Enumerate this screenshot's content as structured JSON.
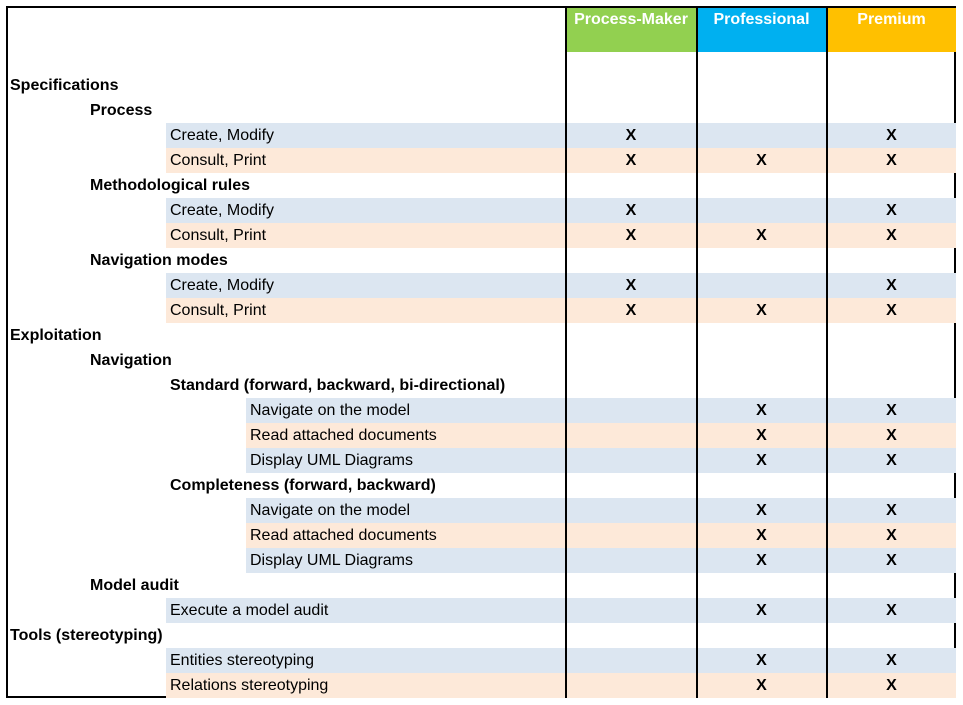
{
  "columns": [
    {
      "label": "Process-Maker",
      "color": "#92d050"
    },
    {
      "label": "Professional",
      "color": "#00b0f0"
    },
    {
      "label": "Premium",
      "color": "#ffc000"
    }
  ],
  "band_colors": {
    "blue": "#dce6f1",
    "peach": "#fde9d9"
  },
  "rows": [
    {
      "label": "Specifications",
      "level": 0,
      "bold": true,
      "band": "",
      "marks": [
        "",
        "",
        ""
      ]
    },
    {
      "label": "Process",
      "level": 1,
      "bold": true,
      "band": "",
      "marks": [
        "",
        "",
        ""
      ]
    },
    {
      "label": "Create, Modify",
      "level": 2,
      "bold": false,
      "band": "blue",
      "marks": [
        "X",
        "",
        "X"
      ]
    },
    {
      "label": "Consult, Print",
      "level": 2,
      "bold": false,
      "band": "peach",
      "marks": [
        "X",
        "X",
        "X"
      ]
    },
    {
      "label": "Methodological rules",
      "level": 1,
      "bold": true,
      "band": "",
      "marks": [
        "",
        "",
        ""
      ]
    },
    {
      "label": "Create, Modify",
      "level": 2,
      "bold": false,
      "band": "blue",
      "marks": [
        "X",
        "",
        "X"
      ]
    },
    {
      "label": "Consult, Print",
      "level": 2,
      "bold": false,
      "band": "peach",
      "marks": [
        "X",
        "X",
        "X"
      ]
    },
    {
      "label": "Navigation modes",
      "level": 1,
      "bold": true,
      "band": "",
      "marks": [
        "",
        "",
        ""
      ]
    },
    {
      "label": "Create, Modify",
      "level": 2,
      "bold": false,
      "band": "blue",
      "marks": [
        "X",
        "",
        "X"
      ]
    },
    {
      "label": "Consult, Print",
      "level": 2,
      "bold": false,
      "band": "peach",
      "marks": [
        "X",
        "X",
        "X"
      ]
    },
    {
      "label": "Exploitation",
      "level": 0,
      "bold": true,
      "band": "",
      "marks": [
        "",
        "",
        ""
      ]
    },
    {
      "label": "Navigation",
      "level": 1,
      "bold": true,
      "band": "",
      "marks": [
        "",
        "",
        ""
      ]
    },
    {
      "label": "Standard (forward, backward, bi-directional)",
      "level": 2,
      "bold": true,
      "band": "",
      "marks": [
        "",
        "",
        ""
      ]
    },
    {
      "label": "Navigate on the model",
      "level": 3,
      "bold": false,
      "band": "blue",
      "marks": [
        "",
        "X",
        "X"
      ]
    },
    {
      "label": "Read attached documents",
      "level": 3,
      "bold": false,
      "band": "peach",
      "marks": [
        "",
        "X",
        "X"
      ]
    },
    {
      "label": "Display UML Diagrams",
      "level": 3,
      "bold": false,
      "band": "blue",
      "marks": [
        "",
        "X",
        "X"
      ]
    },
    {
      "label": "Completeness (forward, backward)",
      "level": 2,
      "bold": true,
      "band": "",
      "marks": [
        "",
        "",
        ""
      ]
    },
    {
      "label": "Navigate on the model",
      "level": 3,
      "bold": false,
      "band": "blue",
      "marks": [
        "",
        "X",
        "X"
      ]
    },
    {
      "label": "Read attached documents",
      "level": 3,
      "bold": false,
      "band": "peach",
      "marks": [
        "",
        "X",
        "X"
      ]
    },
    {
      "label": "Display UML Diagrams",
      "level": 3,
      "bold": false,
      "band": "blue",
      "marks": [
        "",
        "X",
        "X"
      ]
    },
    {
      "label": "Model audit",
      "level": 1,
      "bold": true,
      "band": "",
      "marks": [
        "",
        "",
        ""
      ]
    },
    {
      "label": "Execute a model audit",
      "level": 2,
      "bold": false,
      "band": "blue",
      "marks": [
        "",
        "X",
        "X"
      ]
    },
    {
      "label": "Tools (stereotyping)",
      "level": 0,
      "bold": true,
      "band": "",
      "marks": [
        "",
        "",
        ""
      ]
    },
    {
      "label": "Entities stereotyping",
      "level": 2,
      "bold": false,
      "band": "blue",
      "marks": [
        "",
        "X",
        "X"
      ]
    },
    {
      "label": "Relations stereotyping",
      "level": 2,
      "bold": false,
      "band": "peach",
      "marks": [
        "",
        "X",
        "X"
      ]
    }
  ]
}
